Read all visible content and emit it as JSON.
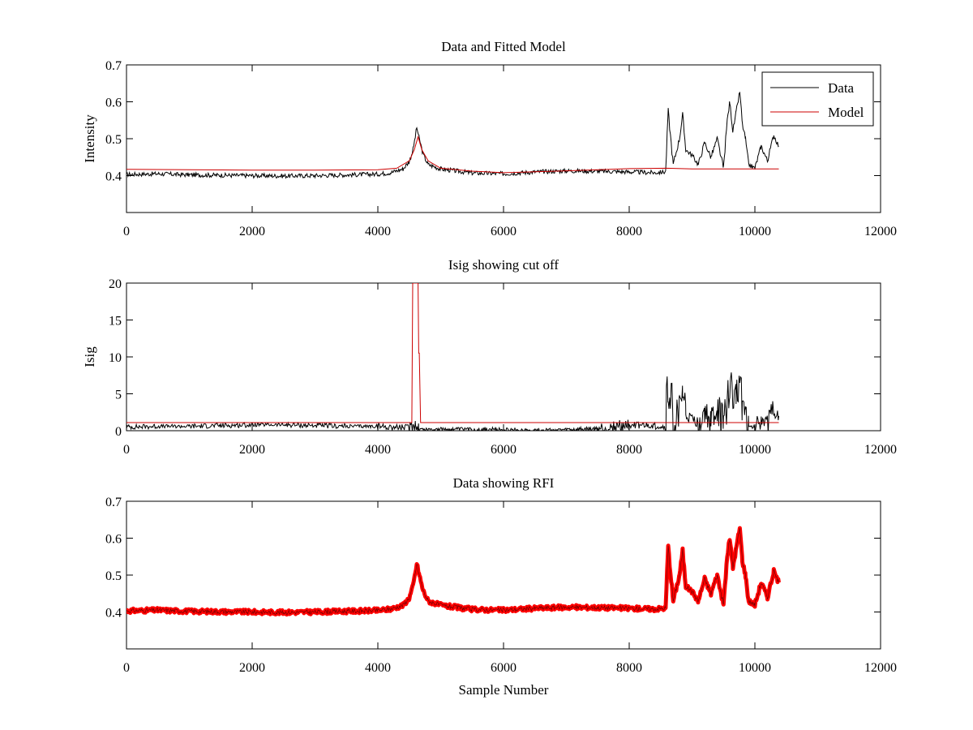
{
  "chart_data": [
    {
      "type": "line",
      "title": "Data and Fitted Model",
      "xlabel": "",
      "ylabel": "Intensity",
      "xlim": [
        0,
        12000
      ],
      "ylim": [
        0.3,
        0.7
      ],
      "xticks": [
        0,
        2000,
        4000,
        6000,
        8000,
        10000,
        12000
      ],
      "yticks": [
        0.4,
        0.5,
        0.6,
        0.7
      ],
      "ytick_labels": [
        "0.4",
        "0.5",
        "0.6",
        "0.7"
      ],
      "legend": {
        "placement": "top-right"
      },
      "series": [
        {
          "name": "Data",
          "color": "#000000",
          "style": "line",
          "x": [
            0,
            500,
            1000,
            1500,
            2000,
            2500,
            3000,
            3500,
            4000,
            4200,
            4400,
            4500,
            4560,
            4620,
            4660,
            4720,
            4800,
            5000,
            5500,
            6000,
            6500,
            7000,
            7500,
            8000,
            8400,
            8580,
            8620,
            8700,
            8800,
            8850,
            8900,
            9000,
            9100,
            9200,
            9300,
            9400,
            9500,
            9560,
            9600,
            9650,
            9700,
            9760,
            9800,
            9850,
            9900,
            10000,
            10100,
            10200,
            10300,
            10380
          ],
          "y": [
            0.403,
            0.405,
            0.402,
            0.401,
            0.4,
            0.399,
            0.4,
            0.402,
            0.404,
            0.408,
            0.418,
            0.438,
            0.47,
            0.53,
            0.5,
            0.458,
            0.43,
            0.418,
            0.407,
            0.405,
            0.41,
            0.413,
            0.412,
            0.41,
            0.408,
            0.41,
            0.575,
            0.43,
            0.5,
            0.565,
            0.47,
            0.455,
            0.43,
            0.49,
            0.45,
            0.5,
            0.42,
            0.55,
            0.6,
            0.52,
            0.57,
            0.628,
            0.54,
            0.5,
            0.43,
            0.42,
            0.48,
            0.44,
            0.51,
            0.48
          ]
        },
        {
          "name": "Model",
          "color": "#cc0000",
          "style": "line",
          "x": [
            0,
            1000,
            2000,
            3000,
            4000,
            4300,
            4500,
            4580,
            4640,
            4700,
            4800,
            5000,
            5500,
            6000,
            7000,
            8000,
            8600,
            9000,
            10000,
            10380
          ],
          "y": [
            0.417,
            0.416,
            0.415,
            0.415,
            0.416,
            0.42,
            0.44,
            0.47,
            0.505,
            0.47,
            0.44,
            0.42,
            0.412,
            0.408,
            0.413,
            0.419,
            0.42,
            0.418,
            0.418,
            0.418
          ]
        }
      ]
    },
    {
      "type": "line",
      "title": "Isig showing cut off",
      "xlabel": "",
      "ylabel": "Isig",
      "xlim": [
        0,
        12000
      ],
      "ylim": [
        0,
        20
      ],
      "xticks": [
        0,
        2000,
        4000,
        6000,
        8000,
        10000,
        12000
      ],
      "yticks": [
        0,
        5,
        10,
        15,
        20
      ],
      "ytick_labels": [
        "0",
        "5",
        "10",
        "15",
        "20"
      ],
      "series": [
        {
          "color": "#000000",
          "style": "line",
          "x": [
            0,
            500,
            1000,
            1500,
            2000,
            2500,
            3000,
            3500,
            4000,
            4500,
            4600,
            4650,
            4700,
            5000,
            5500,
            6000,
            6500,
            7000,
            7500,
            8000,
            8500,
            8580,
            8620,
            8700,
            8800,
            8850,
            8900,
            9000,
            9100,
            9200,
            9300,
            9400,
            9500,
            9560,
            9600,
            9650,
            9700,
            9760,
            9800,
            9850,
            9900,
            10000,
            10100,
            10200,
            10300,
            10380
          ],
          "y": [
            0.5,
            0.6,
            0.6,
            0.7,
            0.8,
            0.8,
            0.7,
            0.6,
            0.6,
            0.4,
            1.0,
            0.3,
            0.2,
            0.2,
            0.2,
            0.1,
            0.1,
            0.1,
            0.2,
            0.8,
            0.6,
            0.4,
            5.5,
            1.0,
            3.0,
            5.0,
            2.0,
            1.5,
            1.0,
            2.5,
            1.0,
            3.0,
            0.5,
            4.0,
            6.5,
            3.5,
            5.0,
            7.3,
            4.0,
            3.0,
            0.5,
            0.5,
            2.0,
            1.0,
            2.5,
            2.0
          ]
        },
        {
          "color": "#cc0000",
          "style": "line",
          "x": [
            0,
            4540,
            4555,
            4560,
            4570,
            4630,
            4640,
            4650,
            4660,
            4680,
            4690,
            10380
          ],
          "y": [
            1.1,
            1.1,
            20,
            20,
            20,
            20,
            20,
            10.5,
            10.5,
            1.1,
            1.1,
            1.1
          ]
        }
      ]
    },
    {
      "type": "scatter",
      "title": "Data showing RFI",
      "xlabel": "Sample Number",
      "ylabel": "",
      "xlim": [
        0,
        12000
      ],
      "ylim": [
        0.3,
        0.7
      ],
      "xticks": [
        0,
        2000,
        4000,
        6000,
        8000,
        10000,
        12000
      ],
      "yticks": [
        0.4,
        0.5,
        0.6,
        0.7
      ],
      "ytick_labels": [
        "0.4",
        "0.5",
        "0.6",
        "0.7"
      ],
      "series": [
        {
          "color": "#ff0000",
          "style": "marker",
          "x": [
            0,
            500,
            1000,
            1500,
            2000,
            2500,
            3000,
            3500,
            4000,
            4200,
            4400,
            4500,
            4560,
            4620,
            4660,
            4720,
            4800,
            5000,
            5500,
            6000,
            6500,
            7000,
            7500,
            8000,
            8400,
            8580,
            8620,
            8700,
            8800,
            8850,
            8900,
            9000,
            9100,
            9200,
            9300,
            9400,
            9500,
            9560,
            9600,
            9650,
            9700,
            9760,
            9800,
            9850,
            9900,
            10000,
            10100,
            10200,
            10300,
            10380
          ],
          "y": [
            0.403,
            0.405,
            0.402,
            0.401,
            0.4,
            0.399,
            0.4,
            0.402,
            0.404,
            0.408,
            0.418,
            0.438,
            0.47,
            0.53,
            0.5,
            0.458,
            0.43,
            0.418,
            0.407,
            0.405,
            0.41,
            0.413,
            0.412,
            0.41,
            0.408,
            0.41,
            0.575,
            0.43,
            0.5,
            0.565,
            0.47,
            0.455,
            0.43,
            0.49,
            0.45,
            0.5,
            0.42,
            0.55,
            0.6,
            0.52,
            0.57,
            0.628,
            0.54,
            0.5,
            0.43,
            0.42,
            0.48,
            0.44,
            0.51,
            0.48
          ]
        }
      ]
    }
  ]
}
